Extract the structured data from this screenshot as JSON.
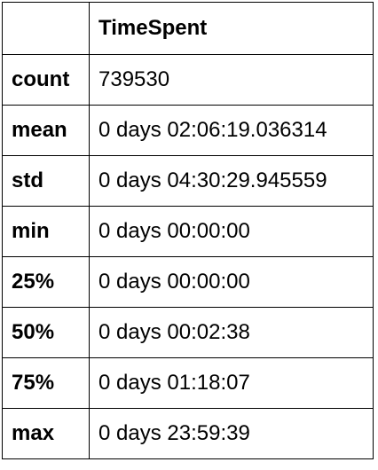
{
  "table": {
    "columns": [
      "",
      "TimeSpent"
    ],
    "rows": [
      {
        "label": "count",
        "value": "739530"
      },
      {
        "label": "mean",
        "value": "0 days 02:06:19.036314"
      },
      {
        "label": "std",
        "value": "0 days 04:30:29.945559"
      },
      {
        "label": "min",
        "value": "0 days 00:00:00"
      },
      {
        "label": "25%",
        "value": "0 days 00:00:00"
      },
      {
        "label": "50%",
        "value": "0 days 00:02:38"
      },
      {
        "label": "75%",
        "value": "0 days 01:18:07"
      },
      {
        "label": "max",
        "value": "0 days 23:59:39"
      }
    ]
  },
  "colors": {
    "border": "#000000",
    "background": "#ffffff",
    "text": "#000000"
  }
}
